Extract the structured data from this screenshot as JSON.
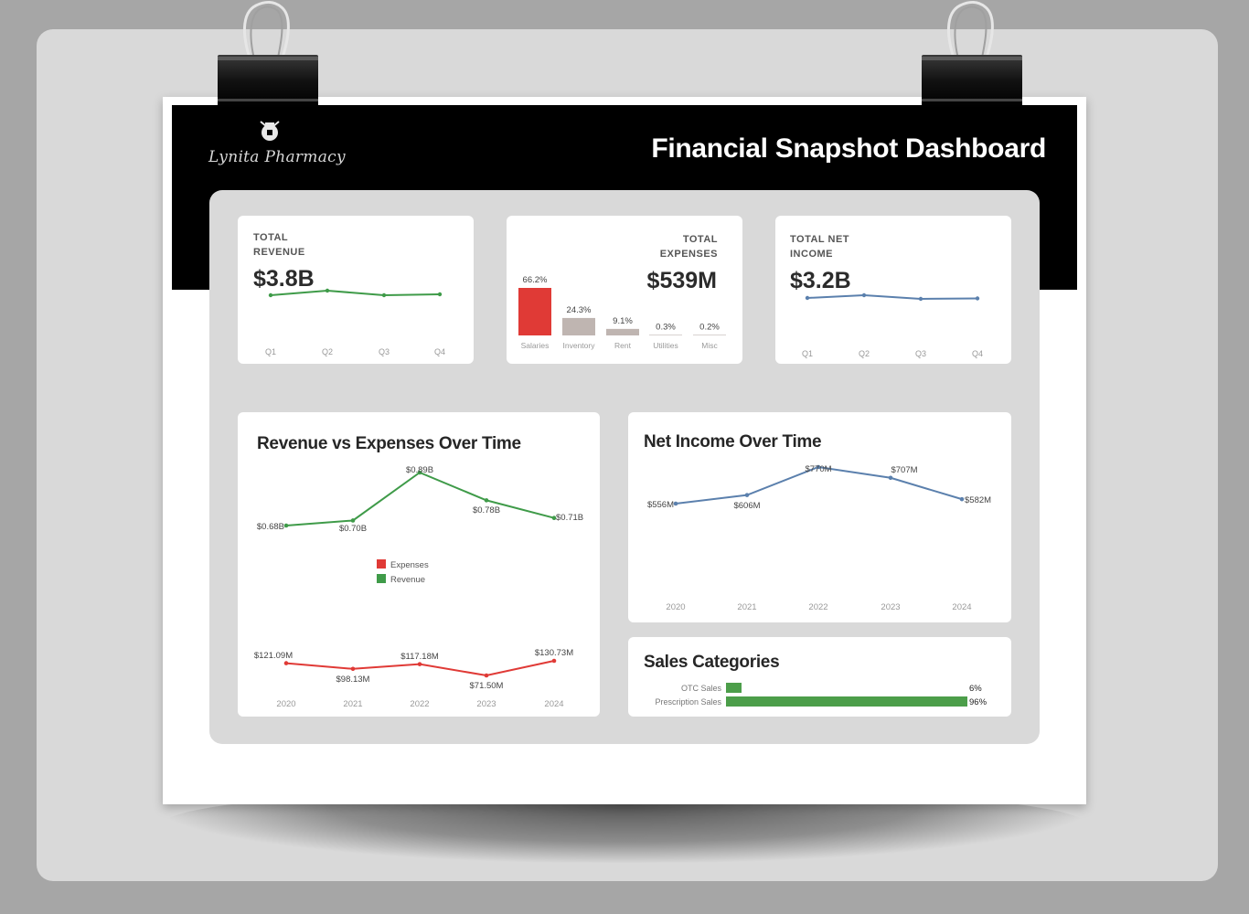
{
  "header": {
    "logo_text": "Lynita Pharmacy",
    "title": "Financial Snapshot Dashboard"
  },
  "kpis": {
    "revenue": {
      "label_line1": "TOTAL",
      "label_line2": "REVENUE",
      "value": "$3.8B"
    },
    "expenses": {
      "label_line1": "TOTAL",
      "label_line2": "EXPENSES",
      "value": "$539M"
    },
    "net_income": {
      "label_line1": "TOTAL NET",
      "label_line2": "INCOME",
      "value": "$3.2B"
    }
  },
  "cards": {
    "rev_exp_title": "Revenue vs Expenses Over Time",
    "net_income_title": "Net Income Over Time",
    "sales_title": "Sales Categories"
  },
  "colors": {
    "revenue": "#3f9b49",
    "expenses": "#e03a36",
    "net_income": "#5b80ad",
    "expense_other": "#bfb5b1",
    "sales": "#4c9e4a"
  },
  "chart_data": [
    {
      "id": "revenue_quarterly",
      "type": "line",
      "categories": [
        "Q1",
        "Q2",
        "Q3",
        "Q4"
      ],
      "values": [
        0.93,
        0.98,
        0.93,
        0.94
      ],
      "ylim": [
        0.7,
        1.1
      ]
    },
    {
      "id": "expenses_by_category",
      "type": "bar",
      "categories": [
        "Salaries",
        "Inventory",
        "Rent",
        "Utilities",
        "Misc"
      ],
      "values": [
        66.2,
        24.3,
        9.1,
        0.3,
        0.2
      ],
      "labels": [
        "66.2%",
        "24.3%",
        "9.1%",
        "0.3%",
        "0.2%"
      ],
      "ylim": [
        0,
        70
      ]
    },
    {
      "id": "net_income_quarterly",
      "type": "line",
      "categories": [
        "Q1",
        "Q2",
        "Q3",
        "Q4"
      ],
      "values": [
        0.8,
        0.83,
        0.79,
        0.795
      ],
      "ylim": [
        0.6,
        1.0
      ]
    },
    {
      "id": "revenue_vs_expenses",
      "type": "line",
      "title": "Revenue vs Expenses Over Time",
      "categories": [
        "2020",
        "2021",
        "2022",
        "2023",
        "2024"
      ],
      "series": [
        {
          "name": "Revenue",
          "values": [
            0.68,
            0.7,
            0.89,
            0.78,
            0.71
          ],
          "labels": [
            "$0.68B",
            "$0.70B",
            "$0.89B",
            "$0.78B",
            "$0.71B"
          ]
        },
        {
          "name": "Expenses",
          "values": [
            121.09,
            98.13,
            117.18,
            71.5,
            130.73
          ],
          "labels": [
            "$121.09M",
            "$98.13M",
            "$117.18M",
            "$71.50M",
            "$130.73M"
          ]
        }
      ],
      "legend": [
        "Expenses",
        "Revenue"
      ],
      "legend_position": "center"
    },
    {
      "id": "net_income_over_time",
      "type": "line",
      "title": "Net Income Over Time",
      "categories": [
        "2020",
        "2021",
        "2022",
        "2023",
        "2024"
      ],
      "values": [
        556,
        606,
        770,
        707,
        582
      ],
      "labels": [
        "$556M",
        "$606M",
        "$770M",
        "$707M",
        "$582M"
      ],
      "ylim": [
        0,
        800
      ]
    },
    {
      "id": "sales_categories",
      "type": "bar",
      "title": "Sales Categories",
      "categories": [
        "OTC Sales",
        "Prescription Sales"
      ],
      "values": [
        6,
        96
      ],
      "labels": [
        "6%",
        "96%"
      ],
      "xlim": [
        0,
        100
      ]
    }
  ]
}
